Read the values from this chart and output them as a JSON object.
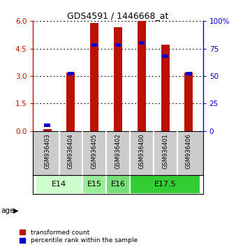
{
  "title": "GDS4591 / 1446668_at",
  "samples": [
    "GSM936403",
    "GSM936404",
    "GSM936405",
    "GSM936402",
    "GSM936400",
    "GSM936401",
    "GSM936406"
  ],
  "red_values": [
    0.12,
    3.18,
    5.88,
    5.65,
    6.0,
    4.72,
    3.18
  ],
  "blue_values": [
    5.5,
    52,
    78,
    78,
    80,
    68,
    52
  ],
  "age_groups": [
    {
      "label": "E14",
      "start": 0,
      "end": 2,
      "color": "#ccffcc"
    },
    {
      "label": "E15",
      "start": 2,
      "end": 3,
      "color": "#99ee99"
    },
    {
      "label": "E16",
      "start": 3,
      "end": 4,
      "color": "#77dd77"
    },
    {
      "label": "E17.5",
      "start": 4,
      "end": 7,
      "color": "#33cc33"
    }
  ],
  "left_ylim": [
    0,
    6
  ],
  "right_ylim": [
    0,
    100
  ],
  "left_yticks": [
    0,
    1.5,
    3,
    4.5,
    6
  ],
  "right_yticks": [
    0,
    25,
    50,
    75,
    100
  ],
  "red_color": "#bb1100",
  "blue_color": "#0000cc",
  "bg_sample": "#cccccc",
  "legend_red": "transformed count",
  "legend_blue": "percentile rank within the sample",
  "bar_width": 0.35
}
